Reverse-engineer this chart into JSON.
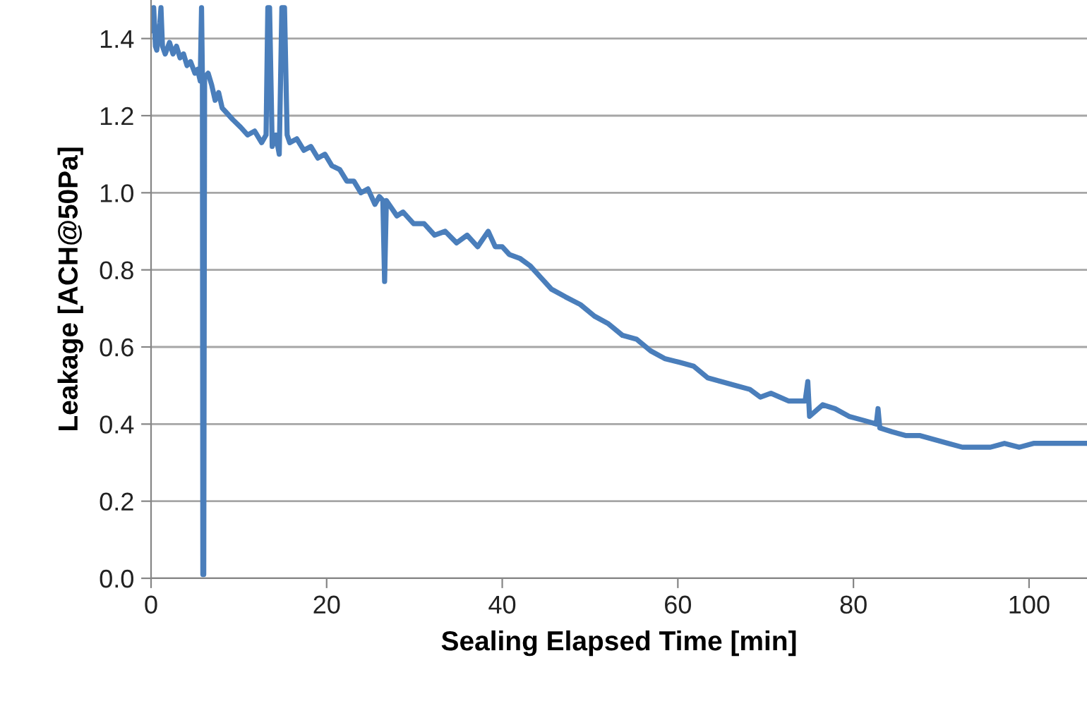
{
  "chart_data": {
    "type": "line",
    "xlabel": "Sealing Elapsed Time [min]",
    "ylabel": "Leakage [ACH@50Pa]",
    "xlim": [
      0,
      106.6
    ],
    "xticks": [
      0,
      20,
      40,
      60,
      80,
      100
    ],
    "ylim": [
      0,
      1.5
    ],
    "yticks": [
      {
        "value": 0,
        "label": "0.0"
      },
      0.2,
      0.4,
      0.6,
      0.8,
      {
        "value": 1,
        "label": "1.0"
      },
      1.2,
      1.4
    ],
    "grid": "y",
    "legend": false,
    "marker": "none",
    "line_style": "solid",
    "series": [
      {
        "color": "#4a7ebb",
        "x": [
          0.0,
          0.16,
          0.3,
          0.5,
          0.65,
          1.0,
          1.13,
          1.3,
          1.61,
          2.1,
          2.5,
          2.9,
          3.3,
          3.7,
          4.1,
          4.5,
          5.0,
          5.3,
          5.6,
          5.75,
          5.85,
          5.9,
          6.0,
          6.1,
          6.5,
          6.9,
          7.3,
          7.7,
          8.1,
          8.5,
          9.3,
          10.2,
          11.0,
          11.8,
          12.6,
          13.1,
          13.3,
          13.5,
          13.8,
          14.2,
          14.6,
          14.9,
          15.2,
          15.5,
          15.8,
          16.6,
          17.4,
          18.2,
          19.0,
          19.8,
          20.6,
          21.5,
          22.3,
          23.1,
          23.9,
          24.7,
          25.5,
          26.0,
          26.4,
          26.6,
          26.8,
          27.1,
          28.0,
          28.7,
          29.9,
          31.1,
          32.3,
          33.5,
          34.8,
          36.0,
          37.2,
          38.4,
          39.2,
          40.0,
          40.8,
          42.0,
          43.2,
          44.4,
          45.6,
          47.2,
          48.9,
          50.5,
          52.1,
          53.7,
          55.3,
          56.9,
          58.5,
          60.2,
          61.8,
          63.4,
          65.0,
          66.6,
          68.2,
          69.4,
          70.6,
          72.6,
          74.5,
          74.8,
          75.0,
          76.5,
          77.9,
          79.5,
          81.1,
          82.6,
          82.8,
          83.0,
          84.4,
          86.0,
          87.6,
          89.2,
          90.8,
          92.4,
          94.0,
          95.6,
          97.2,
          98.9,
          100.5,
          102.1,
          104.3,
          106.6
        ],
        "values": [
          1.42,
          1.45,
          1.48,
          1.38,
          1.37,
          1.44,
          1.48,
          1.38,
          1.36,
          1.39,
          1.36,
          1.38,
          1.35,
          1.36,
          1.33,
          1.34,
          1.31,
          1.32,
          1.29,
          1.48,
          1.3,
          0.01,
          0.01,
          1.3,
          1.31,
          1.28,
          1.24,
          1.26,
          1.22,
          1.21,
          1.19,
          1.17,
          1.15,
          1.16,
          1.13,
          1.15,
          1.48,
          1.48,
          1.12,
          1.15,
          1.1,
          1.48,
          1.48,
          1.15,
          1.13,
          1.14,
          1.11,
          1.12,
          1.09,
          1.1,
          1.07,
          1.06,
          1.03,
          1.03,
          1.0,
          1.01,
          0.97,
          0.99,
          0.98,
          0.77,
          0.98,
          0.97,
          0.94,
          0.95,
          0.92,
          0.92,
          0.89,
          0.9,
          0.87,
          0.89,
          0.86,
          0.9,
          0.86,
          0.86,
          0.84,
          0.83,
          0.81,
          0.78,
          0.75,
          0.73,
          0.71,
          0.68,
          0.66,
          0.63,
          0.62,
          0.59,
          0.57,
          0.56,
          0.55,
          0.52,
          0.51,
          0.5,
          0.49,
          0.47,
          0.48,
          0.46,
          0.46,
          0.51,
          0.42,
          0.45,
          0.44,
          0.42,
          0.41,
          0.4,
          0.44,
          0.39,
          0.38,
          0.37,
          0.37,
          0.36,
          0.35,
          0.34,
          0.34,
          0.34,
          0.35,
          0.34,
          0.35,
          0.35,
          0.35,
          0.35
        ]
      }
    ]
  }
}
